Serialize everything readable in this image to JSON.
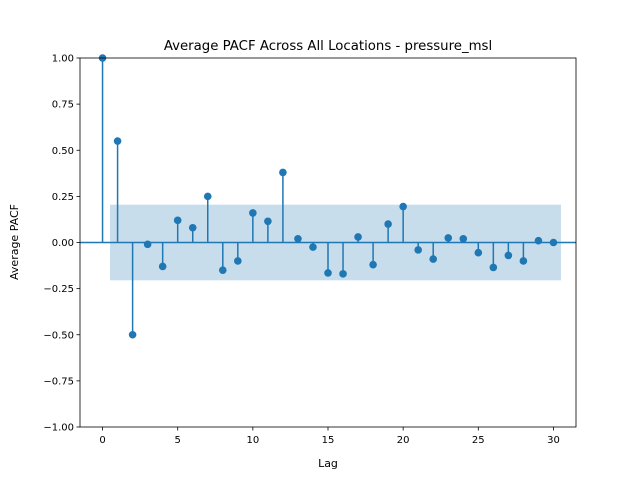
{
  "chart_data": {
    "type": "stem",
    "title": "Average PACF Across All Locations - pressure_msl",
    "xlabel": "Lag",
    "ylabel": "Average PACF",
    "xlim": [
      -1.5,
      31.5
    ],
    "ylim": [
      -1.0,
      1.0
    ],
    "x_ticks": [
      0,
      5,
      10,
      15,
      20,
      25,
      30
    ],
    "x_tick_labels": [
      "0",
      "5",
      "10",
      "15",
      "20",
      "25",
      "30"
    ],
    "y_ticks": [
      -1.0,
      -0.75,
      -0.5,
      -0.25,
      0.0,
      0.25,
      0.5,
      0.75,
      1.0
    ],
    "y_tick_labels": [
      "−1.00",
      "−0.75",
      "−0.50",
      "−0.25",
      "0.00",
      "0.25",
      "0.50",
      "0.75",
      "1.00"
    ],
    "lags": [
      0,
      1,
      2,
      3,
      4,
      5,
      6,
      7,
      8,
      9,
      10,
      11,
      12,
      13,
      14,
      15,
      16,
      17,
      18,
      19,
      20,
      21,
      22,
      23,
      24,
      25,
      26,
      27,
      28,
      29,
      30
    ],
    "values": [
      1.0,
      0.55,
      -0.5,
      -0.01,
      -0.13,
      0.12,
      0.08,
      0.25,
      -0.15,
      -0.1,
      0.16,
      0.115,
      0.38,
      0.02,
      -0.025,
      -0.165,
      -0.17,
      0.03,
      -0.12,
      0.1,
      0.195,
      -0.04,
      -0.09,
      0.025,
      0.02,
      -0.055,
      -0.135,
      -0.07,
      -0.1,
      0.01,
      0.0
    ],
    "confidence_band": {
      "lower": -0.205,
      "upper": 0.205,
      "x_range": [
        0.5,
        30.5
      ]
    },
    "colors": {
      "stem": "#1f77b4",
      "band": "#1f77b4",
      "band_opacity": 0.25
    }
  }
}
